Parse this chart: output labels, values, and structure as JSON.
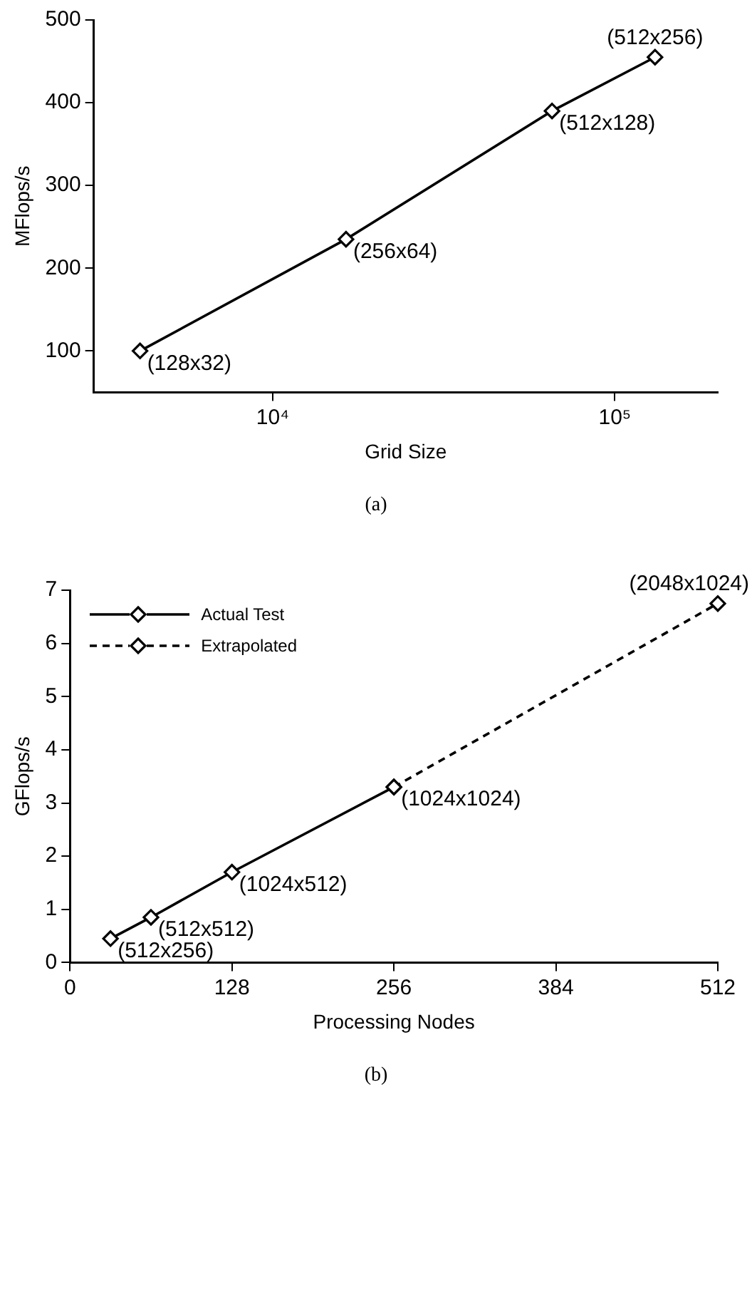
{
  "chart_data": [
    {
      "type": "line",
      "xlabel": "Grid Size",
      "ylabel": "MFlops/s",
      "log": "x",
      "grid": false,
      "legend": false,
      "marker": "diamond",
      "line_style": "solid",
      "xlim": [
        3000,
        200000
      ],
      "xticks": [
        {
          "value": 10000,
          "label": "10⁴"
        },
        {
          "value": 100000,
          "label": "10⁵"
        }
      ],
      "ylim": [
        50,
        500
      ],
      "yticks": [
        100,
        200,
        300,
        400,
        500
      ],
      "series": [
        {
          "color": "#000000",
          "x": [
            4096,
            16384,
            65536,
            131072
          ],
          "values": [
            100,
            235,
            390,
            455
          ]
        }
      ],
      "annotations": [
        {
          "text": "(128x32)",
          "x": 4096,
          "y": 100
        },
        {
          "text": "(256x64)",
          "x": 16384,
          "y": 235
        },
        {
          "text": "(512x128)",
          "x": 65536,
          "y": 390
        },
        {
          "text": "(512x256)",
          "x": 131072,
          "y": 455
        },
        "(a)"
      ]
    },
    {
      "type": "line",
      "xlabel": "Processing Nodes",
      "ylabel": "GFlops/s",
      "grid": false,
      "legend": "top left",
      "marker": "diamond",
      "xlim": [
        0,
        512
      ],
      "xticks": [
        0,
        128,
        256,
        384,
        512
      ],
      "ylim": [
        0,
        7
      ],
      "yticks": [
        0,
        1,
        2,
        3,
        4,
        5,
        6,
        7
      ],
      "series": [
        {
          "name": "Actual Test",
          "color": "#000000",
          "line_style": "solid",
          "x": [
            32,
            64,
            128,
            256
          ],
          "values": [
            0.45,
            0.85,
            1.7,
            3.3
          ]
        },
        {
          "name": "Extrapolated",
          "color": "#000000",
          "line_style": "dashed",
          "x": [
            256,
            512
          ],
          "values": [
            3.3,
            6.75
          ]
        }
      ],
      "annotations": [
        {
          "text": "(512x256)",
          "x": 32,
          "y": 0.45
        },
        {
          "text": "(512x512)",
          "x": 64,
          "y": 0.85
        },
        {
          "text": "(1024x512)",
          "x": 128,
          "y": 1.7
        },
        {
          "text": "(1024x1024)",
          "x": 256,
          "y": 3.3
        },
        {
          "text": "(2048x1024)",
          "x": 512,
          "y": 6.75
        },
        "(b)"
      ]
    }
  ]
}
